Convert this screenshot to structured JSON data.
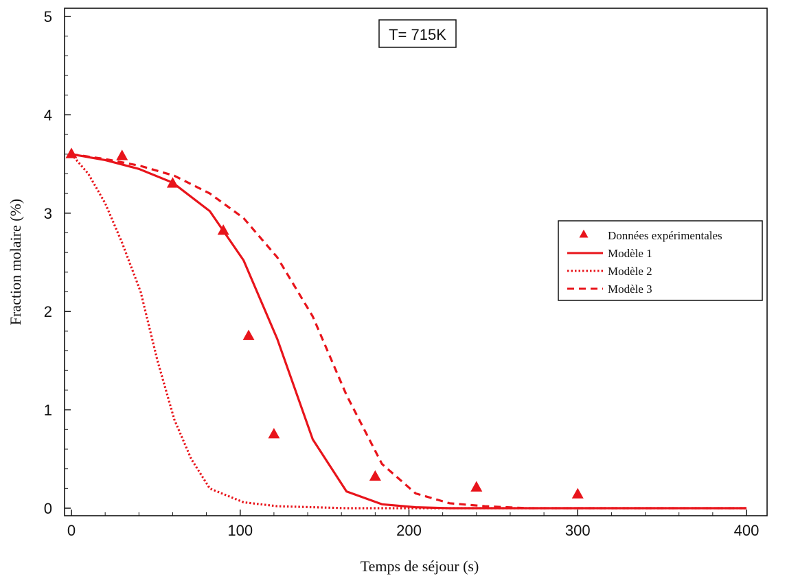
{
  "chart_data": {
    "type": "line",
    "title": "",
    "annotation": "T= 715K",
    "xlabel": "Temps de séjour (s)",
    "ylabel": "Fraction molaire (%)",
    "xlim": [
      0,
      400
    ],
    "ylim": [
      0,
      5
    ],
    "xticks": [
      0,
      100,
      200,
      300,
      400
    ],
    "yticks": [
      0,
      1,
      2,
      3,
      4,
      5
    ],
    "grid": false,
    "legend_position": "right",
    "color": "#e8141b",
    "series": [
      {
        "name": "Données expérimentales",
        "style": "triangle-markers",
        "x": [
          0,
          30,
          60,
          90,
          105,
          120,
          180,
          240,
          300
        ],
        "y": [
          3.6,
          3.58,
          3.3,
          2.82,
          1.75,
          0.75,
          0.32,
          0.21,
          0.14
        ]
      },
      {
        "name": "Modèle 1",
        "style": "solid",
        "x": [
          0,
          20,
          40,
          60,
          82,
          102,
          122,
          143,
          163,
          184,
          204,
          224,
          250,
          300,
          350,
          400
        ],
        "y": [
          3.6,
          3.54,
          3.45,
          3.31,
          3.02,
          2.52,
          1.72,
          0.7,
          0.17,
          0.04,
          0.01,
          0.0,
          0.0,
          0.0,
          0.0,
          0.0
        ]
      },
      {
        "name": "Modèle 2",
        "style": "dotted",
        "x": [
          0,
          10,
          20,
          30,
          41,
          51,
          61,
          71,
          82,
          102,
          122,
          143,
          163,
          184,
          250,
          300,
          400
        ],
        "y": [
          3.6,
          3.4,
          3.1,
          2.7,
          2.2,
          1.5,
          0.9,
          0.5,
          0.2,
          0.06,
          0.02,
          0.01,
          0.0,
          0.0,
          0.0,
          0.0,
          0.0
        ]
      },
      {
        "name": "Modèle 3",
        "style": "dashed",
        "x": [
          0,
          20,
          41,
          61,
          82,
          102,
          122,
          143,
          163,
          184,
          204,
          224,
          245,
          270,
          300,
          350,
          400
        ],
        "y": [
          3.6,
          3.55,
          3.48,
          3.38,
          3.2,
          2.95,
          2.55,
          1.95,
          1.15,
          0.45,
          0.15,
          0.05,
          0.02,
          0.0,
          0.0,
          0.0,
          0.0
        ]
      }
    ]
  }
}
